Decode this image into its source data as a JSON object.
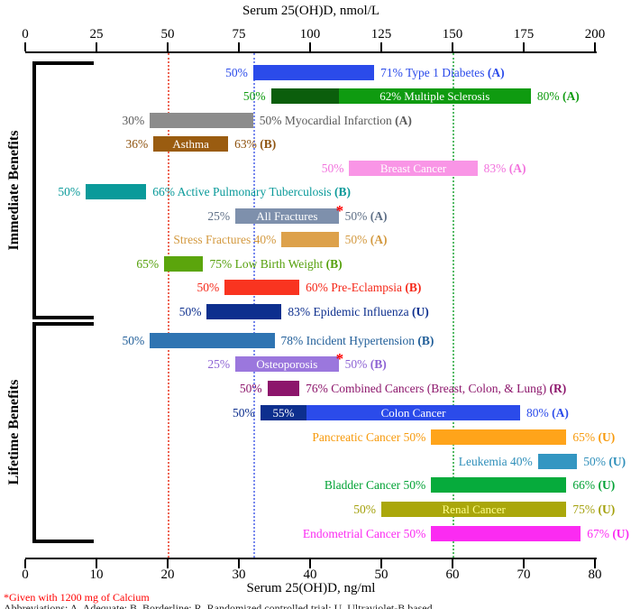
{
  "chart_data": {
    "type": "bar",
    "orientation": "horizontal",
    "top_axis": {
      "title": "Serum 25(OH)D, nmol/L",
      "unit": "nmol/L",
      "ticks": [
        0,
        25,
        50,
        75,
        100,
        125,
        150,
        175,
        200
      ],
      "range": [
        0,
        200
      ]
    },
    "bottom_axis": {
      "title": "Serum 25(OH)D, ng/ml",
      "unit": "ng/ml",
      "ticks": [
        0,
        10,
        20,
        30,
        40,
        50,
        60,
        70,
        80
      ],
      "range": [
        0,
        80
      ]
    },
    "groups": [
      {
        "id": "immediate",
        "label": "Immediate Benefits"
      },
      {
        "id": "lifetime",
        "label": "Lifetime Benefits"
      }
    ],
    "reference_lines": [
      {
        "ng_ml": 20,
        "nmol_L": 50,
        "color": "#ee6655",
        "style": "dotted"
      },
      {
        "ng_ml": 32,
        "nmol_L": 80,
        "color": "#7788ee",
        "style": "dotted"
      },
      {
        "ng_ml": 60,
        "nmol_L": 150,
        "color": "#55bb66",
        "style": "dotted"
      }
    ],
    "rows": [
      {
        "disease": "Type 1 Diabetes",
        "group": "immediate",
        "grade": "A",
        "pct_low": 50,
        "pct_high": 71,
        "serum_ng_ml": [
          32,
          49
        ],
        "left_label": "50%",
        "right_label": "71% Type 1 Diabetes",
        "grade_label": "(A)",
        "label_color": "#2b4bea",
        "segments": [
          {
            "from": 32,
            "to": 49,
            "color": "#2b4bea"
          }
        ]
      },
      {
        "disease": "Multiple Sclerosis",
        "group": "immediate",
        "grade": "A",
        "pct_low": 50,
        "pct_mid": 62,
        "pct_high": 80,
        "serum_ng_ml": [
          34.5,
          71
        ],
        "left_label": "50%",
        "right_label": "80%",
        "grade_label": "(A)",
        "label_color": "#0f9b10",
        "segments": [
          {
            "from": 34.5,
            "to": 44,
            "color": "#0b5e0c"
          },
          {
            "from": 44,
            "to": 71,
            "color": "#0f9b10",
            "label": "62% Multiple Sclerosis",
            "label_color": "#ffffff"
          }
        ]
      },
      {
        "disease": "Myocardial Infarction",
        "group": "immediate",
        "grade": "A",
        "pct_low": 30,
        "pct_high": 50,
        "serum_ng_ml": [
          17.5,
          32
        ],
        "left_label": "30%",
        "right_label": "50% Myocardial Infarction",
        "grade_label": "(A)",
        "label_color": "#5a5a5a",
        "segments": [
          {
            "from": 17.5,
            "to": 32,
            "color": "#8c8c8c"
          }
        ]
      },
      {
        "disease": "Asthma",
        "group": "immediate",
        "grade": "B",
        "pct_low": 36,
        "pct_high": 63,
        "serum_ng_ml": [
          18,
          28.5
        ],
        "left_label": "36%",
        "right_label": "63%",
        "grade_label": "(B)",
        "label_color": "#8f5410",
        "segments": [
          {
            "from": 18,
            "to": 28.5,
            "color": "#9a5c10",
            "label": "Asthma",
            "label_color": "#ffffff"
          }
        ]
      },
      {
        "disease": "Breast Cancer",
        "group": "immediate",
        "grade": "A",
        "pct_low": 50,
        "pct_high": 83,
        "serum_ng_ml": [
          45.5,
          63.5
        ],
        "left_label": "50%",
        "right_label": "83%",
        "grade_label": "(A)",
        "label_color": "#f272dd",
        "segments": [
          {
            "from": 45.5,
            "to": 63.5,
            "color": "#f995e6",
            "label": "Breast Cancer",
            "label_color": "#ffffff"
          }
        ]
      },
      {
        "disease": "Active Pulmonary Tuberculosis",
        "group": "immediate",
        "grade": "B",
        "pct_low": 50,
        "pct_high": 66,
        "serum_ng_ml": [
          8.5,
          17
        ],
        "left_label": "50%",
        "right_label": "66% Active Pulmonary Tuberculosis",
        "grade_label": "(B)",
        "label_color": "#0a9a9a",
        "segments": [
          {
            "from": 8.5,
            "to": 17,
            "color": "#0a9a9a"
          }
        ]
      },
      {
        "disease": "All Fractures",
        "group": "immediate",
        "grade": "A",
        "pct_low": 25,
        "pct_high": 50,
        "serum_ng_ml": [
          29.5,
          44
        ],
        "asterisk": true,
        "left_label": "25%",
        "right_label": "50%",
        "grade_label": "(A)",
        "label_color": "#5e6f86",
        "segments": [
          {
            "from": 29.5,
            "to": 44,
            "color": "#7e90ac",
            "label": "All Fractures",
            "label_color": "#ffffff"
          }
        ]
      },
      {
        "disease": "Stress Fractures",
        "group": "immediate",
        "grade": "A",
        "pct_low": 40,
        "pct_high": 50,
        "serum_ng_ml": [
          36,
          44
        ],
        "left_label": "Stress Fractures 40%",
        "right_label": "50%",
        "grade_label": "(A)",
        "label_color": "#d3993f",
        "segments": [
          {
            "from": 36,
            "to": 44,
            "color": "#dda14b"
          }
        ]
      },
      {
        "disease": "Low Birth Weight",
        "group": "immediate",
        "grade": "B",
        "pct_low": 65,
        "pct_high": 75,
        "serum_ng_ml": [
          19.5,
          25
        ],
        "left_label": "65%",
        "right_label": "75% Low Birth Weight",
        "grade_label": "(B)",
        "label_color": "#55a00b",
        "segments": [
          {
            "from": 19.5,
            "to": 25,
            "color": "#5ba50c"
          }
        ]
      },
      {
        "disease": "Pre-Eclampsia",
        "group": "immediate",
        "grade": "B",
        "pct_low": 50,
        "pct_high": 60,
        "serum_ng_ml": [
          28,
          38.5
        ],
        "left_label": "50%",
        "right_label": "60% Pre-Eclampsia",
        "grade_label": "(B)",
        "label_color": "#f52718",
        "segments": [
          {
            "from": 28,
            "to": 38.5,
            "color": "#f93420"
          }
        ]
      },
      {
        "disease": "Epidemic Influenza",
        "group": "immediate",
        "grade": "U",
        "pct_low": 50,
        "pct_high": 83,
        "serum_ng_ml": [
          25.5,
          36
        ],
        "left_label": "50%",
        "right_label": "83% Epidemic Influenza",
        "grade_label": "(U)",
        "label_color": "#0d2f8e",
        "segments": [
          {
            "from": 25.5,
            "to": 36,
            "color": "#0d2f8e"
          }
        ]
      },
      {
        "disease": "Incident Hypertension",
        "group": "lifetime",
        "grade": "B",
        "pct_low": 50,
        "pct_high": 78,
        "serum_ng_ml": [
          17.5,
          35
        ],
        "left_label": "50%",
        "right_label": "78% Incident Hypertension",
        "grade_label": "(B)",
        "label_color": "#1f5d98",
        "segments": [
          {
            "from": 17.5,
            "to": 35,
            "color": "#2f74b2"
          }
        ]
      },
      {
        "disease": "Osteoporosis",
        "group": "lifetime",
        "grade": "B",
        "pct_low": 25,
        "pct_high": 50,
        "serum_ng_ml": [
          29.5,
          44
        ],
        "asterisk": true,
        "left_label": "25%",
        "right_label": "50%",
        "grade_label": "(B)",
        "label_color": "#8d63d4",
        "segments": [
          {
            "from": 29.5,
            "to": 44,
            "color": "#9b77dd",
            "label": "Osteoporosis",
            "label_color": "#ffffff"
          }
        ]
      },
      {
        "disease": "Combined Cancers (Breast, Colon, & Lung)",
        "group": "lifetime",
        "grade": "R",
        "pct_low": 50,
        "pct_high": 76,
        "serum_ng_ml": [
          34,
          38.5
        ],
        "left_label": "50%",
        "right_label": "76% Combined Cancers (Breast, Colon, & Lung)",
        "grade_label": "(R)",
        "label_color": "#8c156b",
        "segments": [
          {
            "from": 34,
            "to": 38.5,
            "color": "#8c156b"
          }
        ]
      },
      {
        "disease": "Colon Cancer",
        "group": "lifetime",
        "grade": "A",
        "pct_low": 50,
        "pct_mid": 55,
        "pct_high": 80,
        "serum_ng_ml": [
          33,
          69.5
        ],
        "left_label": "50%",
        "right_label": "80%",
        "grade_label": "(A)",
        "label_color": "#2b4bea",
        "left_color": "#0d2f8e",
        "right_color": "#2b4bea",
        "segments": [
          {
            "from": 33,
            "to": 39.5,
            "color": "#0d2f8e",
            "label": "55%",
            "label_color": "#ffffff"
          },
          {
            "from": 39.5,
            "to": 69.5,
            "color": "#2b4bea",
            "label": "Colon Cancer",
            "label_color": "#ffffff"
          }
        ]
      },
      {
        "disease": "Pancreatic Cancer",
        "group": "lifetime",
        "grade": "U",
        "pct_low": 50,
        "pct_high": 65,
        "serum_ng_ml": [
          57,
          76
        ],
        "left_label": "Pancreatic Cancer 50%",
        "right_label": "65%",
        "grade_label": "(U)",
        "label_color": "#f79a0c",
        "segments": [
          {
            "from": 57,
            "to": 76,
            "color": "#ffa41a"
          }
        ]
      },
      {
        "disease": "Leukemia",
        "group": "lifetime",
        "grade": "U",
        "pct_low": 40,
        "pct_high": 50,
        "serum_ng_ml": [
          72,
          77.5
        ],
        "left_label": "Leukemia 40%",
        "right_label": "50%",
        "grade_label": "(U)",
        "label_color": "#2f8fba",
        "segments": [
          {
            "from": 72,
            "to": 77.5,
            "color": "#3396c2"
          }
        ]
      },
      {
        "disease": "Bladder Cancer",
        "group": "lifetime",
        "grade": "U",
        "pct_low": 50,
        "pct_high": 66,
        "serum_ng_ml": [
          57,
          76
        ],
        "left_label": "Bladder Cancer 50%",
        "right_label": "66%",
        "grade_label": "(U)",
        "label_color": "#02a235",
        "segments": [
          {
            "from": 57,
            "to": 76,
            "color": "#06ab3c"
          }
        ]
      },
      {
        "disease": "Renal Cancer",
        "group": "lifetime",
        "grade": "U",
        "pct_low": 50,
        "pct_high": 75,
        "serum_ng_ml": [
          50,
          76
        ],
        "left_label": "50%",
        "right_label": "75%",
        "grade_label": "(U)",
        "label_color": "#a3a00a",
        "segments": [
          {
            "from": 50,
            "to": 76,
            "color": "#aaa70b",
            "label": "Renal Cancer",
            "label_color": "#ffff8c"
          }
        ]
      },
      {
        "disease": "Endometrial Cancer",
        "group": "lifetime",
        "grade": "U",
        "pct_low": 50,
        "pct_high": 67,
        "serum_ng_ml": [
          57,
          78
        ],
        "left_label": "Endometrial Cancer 50%",
        "right_label": "67%",
        "grade_label": "(U)",
        "label_color": "#fb2bf2",
        "segments": [
          {
            "from": 57,
            "to": 78,
            "color": "#fb2bf2"
          }
        ]
      }
    ],
    "footnotes": [
      {
        "text": "*Given with 1200 mg of Calcium",
        "color": "#ff0000"
      },
      {
        "text": "Abbreviations: A, Adequate; B, Borderline; R, Randomized controlled trial; U, Ultraviolet-B based",
        "color": "#222222",
        "clipped": true
      }
    ]
  }
}
